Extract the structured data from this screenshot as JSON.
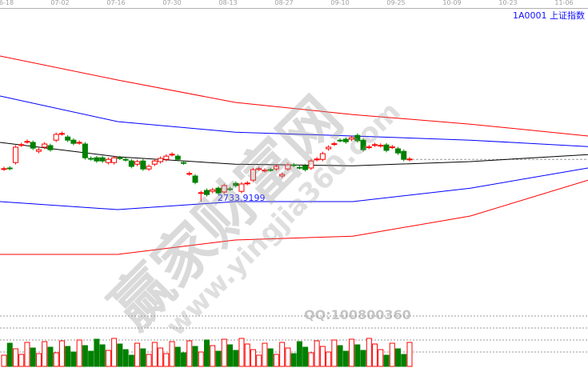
{
  "axis": {
    "dates": [
      "6-18",
      "07-02",
      "07-16",
      "07-30",
      "08-13",
      "08-27",
      "09-10",
      "09-25",
      "10-09",
      "10-23",
      "11-06"
    ]
  },
  "instrument": {
    "code_label": "1A0001  上证指数"
  },
  "low_label": "2733.9199",
  "watermark": {
    "text1": "赢家财富网",
    "text2": "www.yingjia360.com",
    "qq": "QQ:100800360"
  },
  "colors": {
    "up": "#ff0000",
    "down": "#008000",
    "band_outer": "#ff0000",
    "band_inner": "#0000ff",
    "mid": "#000000"
  },
  "chart_data": {
    "type": "candlestick",
    "low_price": 2733.9199,
    "candles": [
      [
        2836,
        2837
      ],
      [
        2839,
        2838
      ],
      [
        2856,
        2904
      ],
      [
        2911,
        2912
      ],
      [
        2921,
        2922
      ],
      [
        2919,
        2901
      ],
      [
        2891,
        2896
      ],
      [
        2904,
        2914
      ],
      [
        2909,
        2896
      ],
      [
        2926,
        2944
      ],
      [
        2946,
        2947
      ],
      [
        2936,
        2926
      ],
      [
        2926,
        2916
      ],
      [
        2918,
        2919
      ],
      [
        2914,
        2871
      ],
      [
        2869,
        2868
      ],
      [
        2871,
        2861
      ],
      [
        2871,
        2861
      ],
      [
        2856,
        2866
      ],
      [
        2856,
        2871
      ],
      [
        2871,
        2870
      ],
      [
        2866,
        2865
      ],
      [
        2861,
        2844
      ],
      [
        2851,
        2859
      ],
      [
        2861,
        2836
      ],
      [
        2836,
        2844
      ],
      [
        2851,
        2861
      ],
      [
        2859,
        2869
      ],
      [
        2866,
        2876
      ],
      [
        2881,
        2882
      ],
      [
        2876,
        2866
      ],
      [
        2856,
        2855
      ],
      [
        2821,
        2822
      ],
      [
        2814,
        2794
      ],
      [
        2761,
        2762
      ],
      [
        2769,
        2756
      ],
      [
        2766,
        2771
      ],
      [
        2776,
        2761
      ],
      [
        2764,
        2784
      ],
      [
        2774,
        2773
      ],
      [
        2791,
        2784
      ],
      [
        2766,
        2789
      ],
      [
        2791,
        2792
      ],
      [
        2801,
        2834
      ],
      [
        2836,
        2837
      ],
      [
        2831,
        2832
      ],
      [
        2834,
        2833
      ],
      [
        2836,
        2844
      ],
      [
        2814,
        2819
      ],
      [
        2836,
        2849
      ],
      [
        2849,
        2848
      ],
      [
        2841,
        2840
      ],
      [
        2846,
        2834
      ],
      [
        2839,
        2861
      ],
      [
        2866,
        2867
      ],
      [
        2866,
        2884
      ],
      [
        2899,
        2904
      ],
      [
        2914,
        2915
      ],
      [
        2926,
        2925
      ],
      [
        2929,
        2921
      ],
      [
        2929,
        2934
      ],
      [
        2941,
        2924
      ],
      [
        2926,
        2896
      ],
      [
        2904,
        2905
      ],
      [
        2911,
        2912
      ],
      [
        2909,
        2910
      ],
      [
        2911,
        2894
      ],
      [
        2904,
        2905
      ],
      [
        2899,
        2886
      ],
      [
        2891,
        2866
      ],
      [
        2866,
        2867
      ]
    ],
    "bands": {
      "upper_outer": [
        3189,
        3114,
        3044,
        3006,
        2976,
        2939
      ],
      "upper_inner": [
        3064,
        2984,
        2951,
        2939,
        2926,
        2906
      ],
      "middle": [
        2919,
        2874,
        2851,
        2846,
        2859,
        2881
      ],
      "lower_inner": [
        2734,
        2709,
        2734,
        2734,
        2776,
        2839
      ],
      "lower_outer": [
        2569,
        2569,
        2614,
        2626,
        2689,
        2801
      ]
    }
  }
}
